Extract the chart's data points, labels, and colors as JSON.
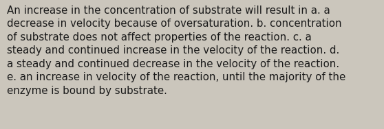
{
  "lines": [
    "An increase in the concentration of substrate will result in a. a",
    "decrease in velocity because of oversaturation. b. concentration",
    "of substrate does not affect properties of the reaction. c. a",
    "steady and continued increase in the velocity of the reaction. d.",
    "a steady and continued decrease in the velocity of the reaction.",
    "e. an increase in velocity of the reaction, until the majority of the",
    "enzyme is bound by substrate."
  ],
  "background_color": "#cbc6bc",
  "text_color": "#1a1a1a",
  "font_size": 10.8,
  "fig_width": 5.58,
  "fig_height": 1.88
}
